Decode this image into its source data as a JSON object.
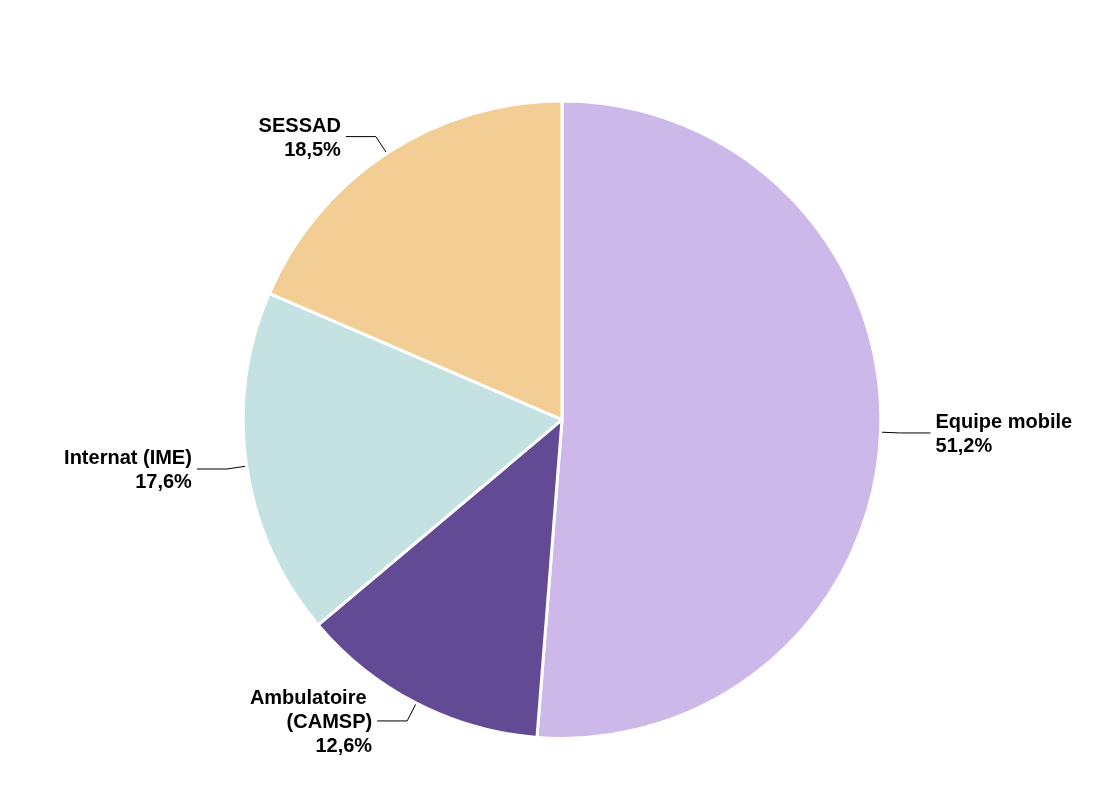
{
  "chart_data": {
    "type": "pie",
    "categories": [
      "Equipe mobile",
      "Ambulatoire (CAMSP)",
      "Internat (IME)",
      "SESSAD"
    ],
    "values": [
      51.2,
      12.6,
      17.6,
      18.5
    ],
    "colors": [
      "#cdb8ea",
      "#634a94",
      "#c4e2e2",
      "#f2ce95"
    ],
    "value_labels": [
      "51,2%",
      "12,6%",
      "17,6%",
      "18,5%"
    ],
    "legend": false
  }
}
